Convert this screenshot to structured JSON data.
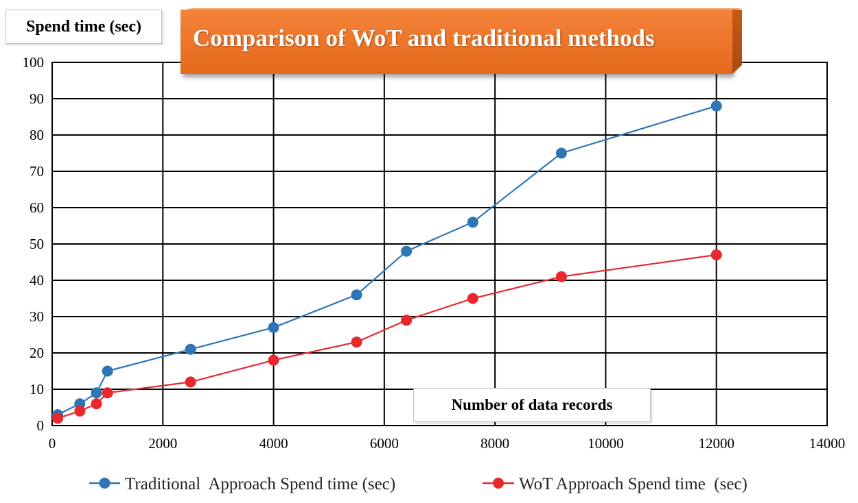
{
  "chart_data": {
    "type": "line",
    "title": "Comparison of WoT and traditional methods",
    "xlabel": "Number of data records",
    "ylabel": "Spend time (sec)",
    "xlim": [
      0,
      14000
    ],
    "ylim": [
      0,
      100
    ],
    "xticks": [
      0,
      2000,
      4000,
      6000,
      8000,
      10000,
      12000,
      14000
    ],
    "yticks": [
      0,
      10,
      20,
      30,
      40,
      50,
      60,
      70,
      80,
      90,
      100
    ],
    "grid": true,
    "legend_position": "bottom",
    "series": [
      {
        "name": "Traditional  Approach Spend time (sec)",
        "color": "#2e75b6",
        "x": [
          100,
          500,
          800,
          1000,
          2500,
          4000,
          5500,
          6400,
          7600,
          9200,
          12000
        ],
        "y": [
          3,
          6,
          9,
          15,
          21,
          27,
          36,
          48,
          56,
          75,
          88
        ]
      },
      {
        "name": "WoT Approach Spend time  (sec)",
        "color": "#e8282c",
        "x": [
          100,
          500,
          800,
          1000,
          2500,
          4000,
          5500,
          6400,
          7600,
          9200,
          12000
        ],
        "y": [
          2,
          4,
          6,
          9,
          12,
          18,
          23,
          29,
          35,
          41,
          47
        ]
      }
    ]
  }
}
